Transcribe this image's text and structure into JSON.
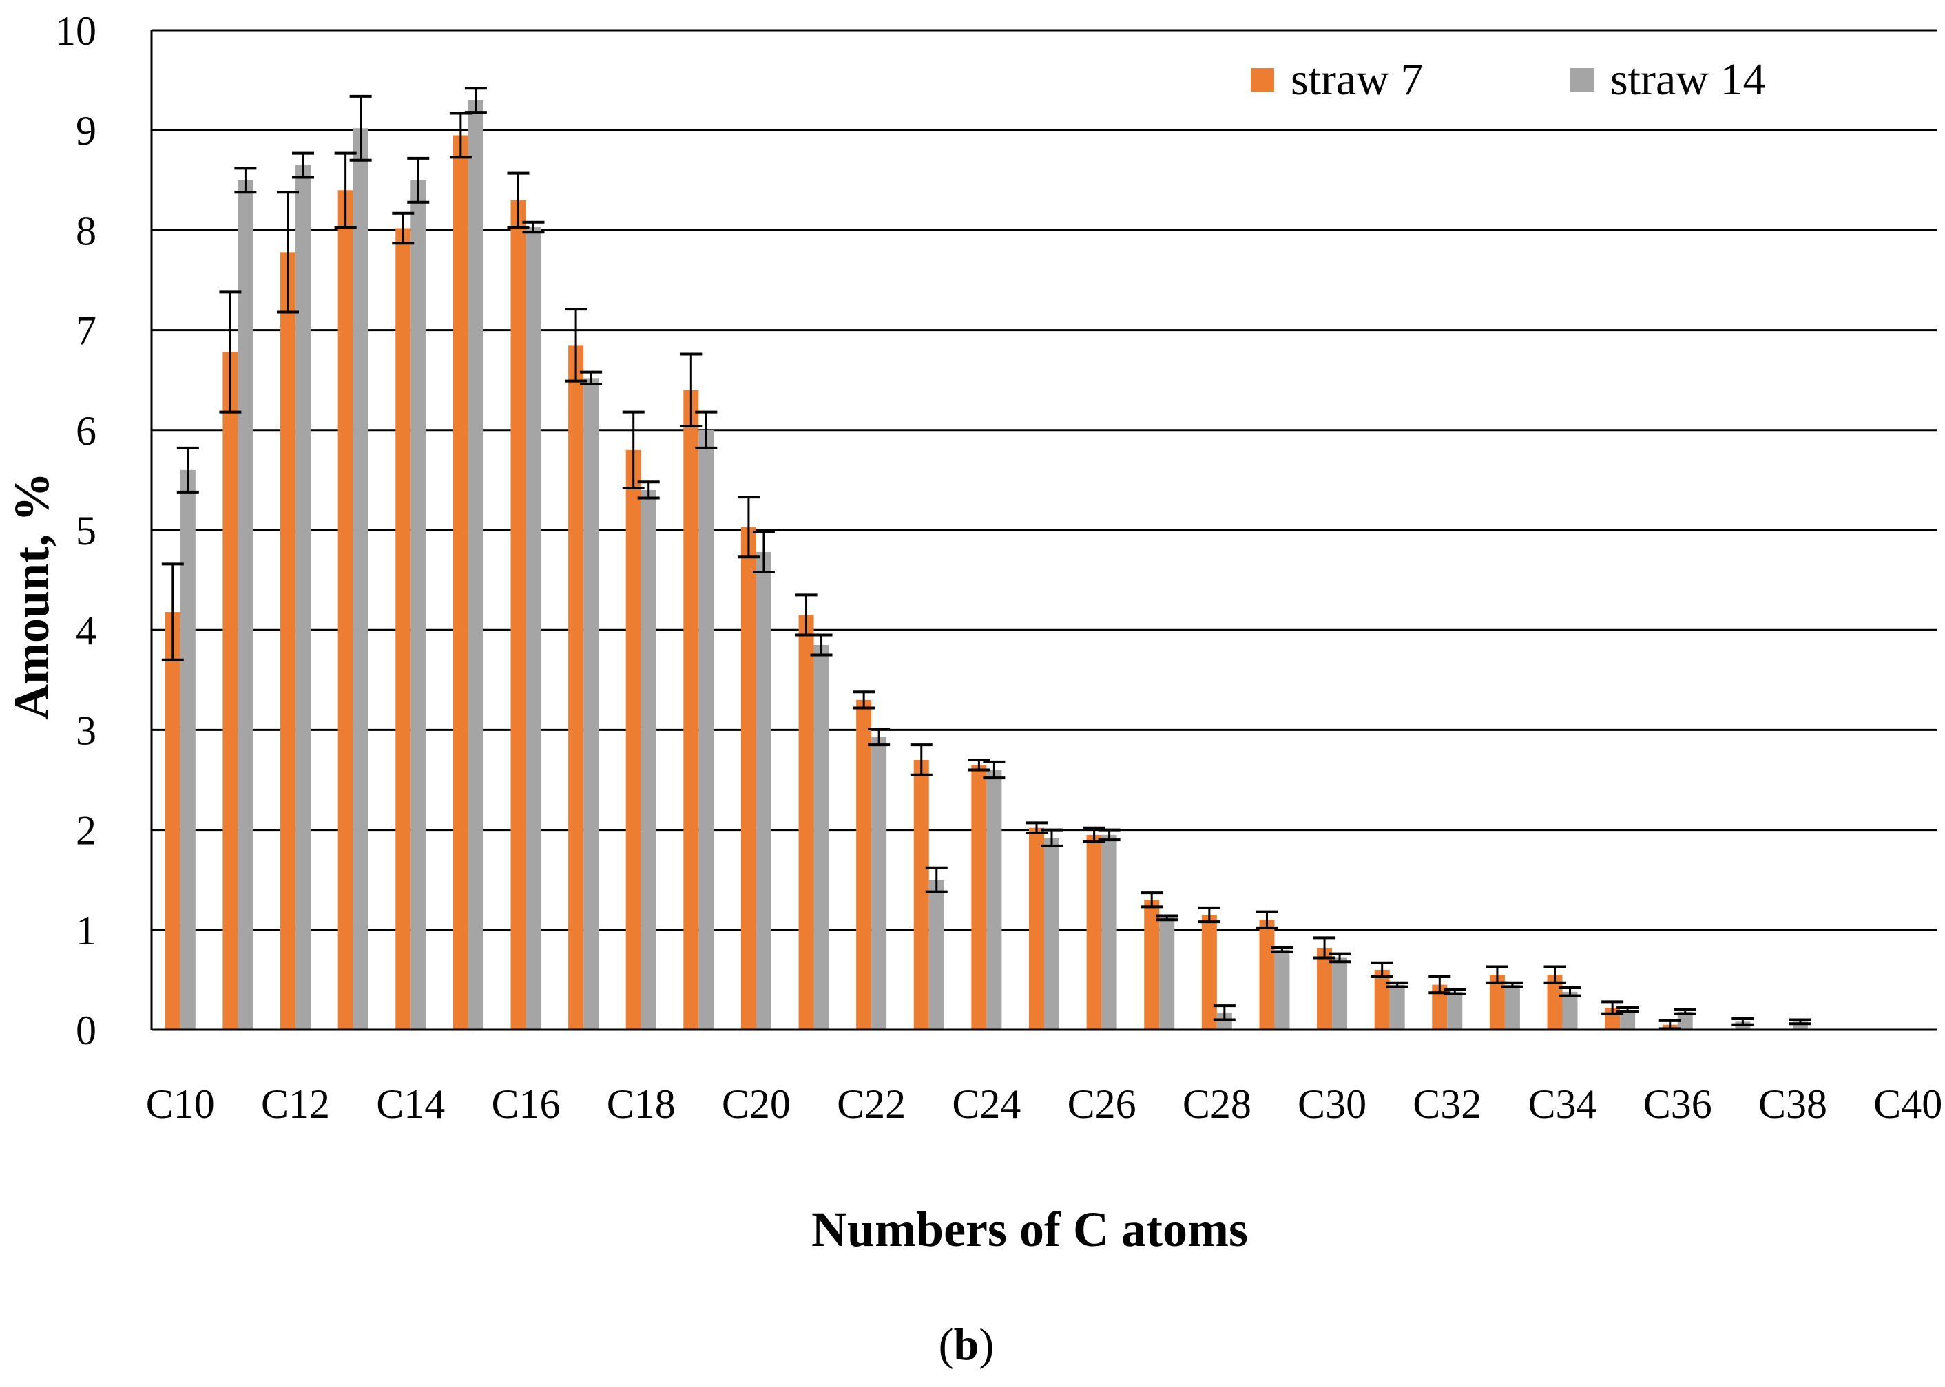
{
  "chart_data": {
    "type": "bar",
    "xlabel": "Numbers of C atoms",
    "ylabel": "Amount, %",
    "caption_prefix": "(",
    "caption_bold": "b",
    "caption_suffix": ")",
    "ylim": [
      0,
      10
    ],
    "yticks": [
      "0",
      "1",
      "2",
      "3",
      "4",
      "5",
      "6",
      "7",
      "8",
      "9",
      "10"
    ],
    "grid": true,
    "legend_position": "top-right",
    "categories": [
      "C10",
      "C11",
      "C12",
      "C13",
      "C14",
      "C15",
      "C16",
      "C17",
      "C18",
      "C19",
      "C20",
      "C21",
      "C22",
      "C23",
      "C24",
      "C25",
      "C26",
      "C27",
      "C28",
      "C29",
      "C30",
      "C31",
      "C32",
      "C33",
      "C34",
      "C35",
      "C36",
      "C37",
      "C38",
      "C39",
      "C40"
    ],
    "xtick_labels": [
      "C10",
      "C12",
      "C14",
      "C16",
      "C18",
      "C20",
      "C22",
      "C24",
      "C26",
      "C28",
      "C30",
      "C32",
      "C34",
      "C36",
      "C38",
      "C40"
    ],
    "series": [
      {
        "name": "straw 7",
        "color": "#ED7D31",
        "values": [
          4.18,
          6.78,
          7.78,
          8.4,
          8.02,
          8.95,
          8.3,
          6.85,
          5.8,
          6.4,
          5.03,
          4.15,
          3.3,
          2.7,
          2.65,
          2.02,
          1.95,
          1.3,
          1.15,
          1.1,
          0.82,
          0.6,
          0.45,
          0.55,
          0.55,
          0.22,
          0.05,
          0,
          0,
          0,
          0
        ],
        "errors": [
          0.48,
          0.6,
          0.6,
          0.37,
          0.15,
          0.22,
          0.27,
          0.36,
          0.38,
          0.36,
          0.3,
          0.2,
          0.08,
          0.15,
          0.05,
          0.05,
          0.07,
          0.07,
          0.07,
          0.08,
          0.1,
          0.07,
          0.08,
          0.08,
          0.08,
          0.06,
          0.04,
          0,
          0,
          0,
          0
        ]
      },
      {
        "name": "straw 14",
        "color": "#A5A5A5",
        "values": [
          5.6,
          8.5,
          8.65,
          9.02,
          8.5,
          9.3,
          8.03,
          6.52,
          5.4,
          6.0,
          4.78,
          3.85,
          2.93,
          1.5,
          2.6,
          1.92,
          1.95,
          1.12,
          0.17,
          0.8,
          0.72,
          0.45,
          0.38,
          0.45,
          0.38,
          0.2,
          0.18,
          0.08,
          0.08,
          0,
          0
        ],
        "errors": [
          0.22,
          0.12,
          0.12,
          0.32,
          0.22,
          0.12,
          0.05,
          0.06,
          0.08,
          0.18,
          0.2,
          0.1,
          0.08,
          0.12,
          0.08,
          0.08,
          0.05,
          0.02,
          0.07,
          0.02,
          0.04,
          0.02,
          0.02,
          0.02,
          0.04,
          0.02,
          0.02,
          0.03,
          0.02,
          0,
          0
        ]
      }
    ]
  }
}
